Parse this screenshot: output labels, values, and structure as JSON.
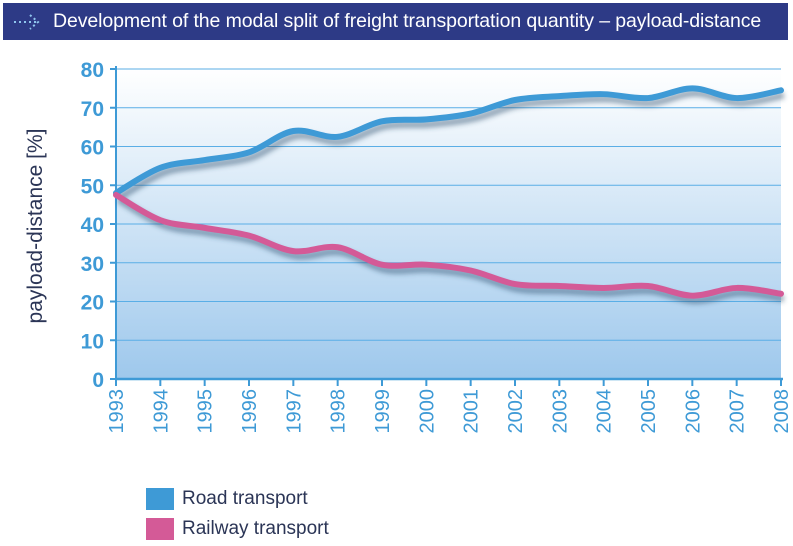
{
  "header": {
    "title": "Development of the modal split of freight transportation quantity – payload-distance"
  },
  "colors": {
    "header_bg": "#2d3a86",
    "road": "#3e9ad6",
    "railway": "#d45a97",
    "axis_text": "#3e9ad6",
    "ylabel_text": "#2b3556"
  },
  "chart_data": {
    "type": "line",
    "title": "Development of the modal split of freight transportation quantity – payload-distance",
    "xlabel": "",
    "ylabel": "payload-distance [%]",
    "categories": [
      "1993",
      "1994",
      "1995",
      "1996",
      "1997",
      "1998",
      "1999",
      "2000",
      "2001",
      "2002",
      "2003",
      "2004",
      "2005",
      "2006",
      "2007",
      "2008"
    ],
    "yticks": [
      "0",
      "10",
      "20",
      "30",
      "40",
      "50",
      "60",
      "70",
      "80"
    ],
    "ylim": [
      0,
      80
    ],
    "grid": true,
    "legend_position": "bottom-left",
    "series": [
      {
        "name": "Road transport",
        "color": "#3e9ad6",
        "values": [
          48,
          54.5,
          56.5,
          58.5,
          64,
          62.5,
          66.5,
          67,
          68.5,
          72,
          73,
          73.5,
          72.5,
          75,
          72.5,
          74.5
        ]
      },
      {
        "name": "Railway transport",
        "color": "#d45a97",
        "values": [
          47.5,
          41,
          39,
          37,
          33,
          34,
          29.5,
          29.5,
          28,
          24.5,
          24,
          23.5,
          24,
          21.5,
          23.5,
          22
        ]
      }
    ]
  }
}
